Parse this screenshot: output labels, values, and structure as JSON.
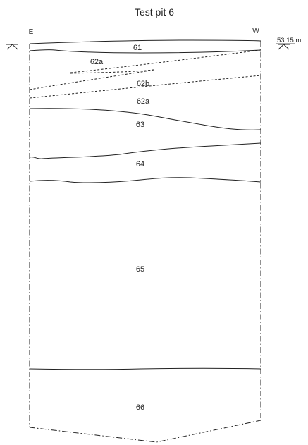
{
  "title": "Test pit 6",
  "orientation": {
    "left": "E",
    "right": "W"
  },
  "datum": {
    "elevation": "53.15 m",
    "symbol": "datum-level-marker"
  },
  "layers": [
    {
      "id": "61",
      "label": "61"
    },
    {
      "id": "62a-upper",
      "label": "62a"
    },
    {
      "id": "62b",
      "label": "62b"
    },
    {
      "id": "62a-lower",
      "label": "62a"
    },
    {
      "id": "63",
      "label": "63"
    },
    {
      "id": "64",
      "label": "64"
    },
    {
      "id": "65",
      "label": "65"
    },
    {
      "id": "66",
      "label": "66"
    }
  ]
}
